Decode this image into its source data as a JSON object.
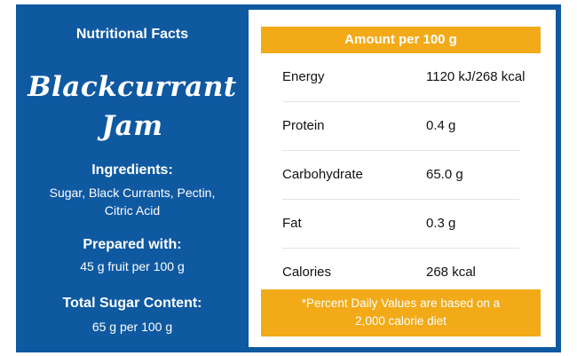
{
  "left": {
    "heading": "Nutritional Facts",
    "product_line1": "Blackcurrant",
    "product_line2": "Jam",
    "ingredients_heading": "Ingredients:",
    "ingredients_line1": "Sugar, Black Currants, Pectin,",
    "ingredients_line2": "Citric Acid",
    "prepared_heading": "Prepared with:",
    "prepared_value": "45 g fruit per 100 g",
    "sugar_heading": "Total Sugar Content:",
    "sugar_value": "65 g per 100 g"
  },
  "table": {
    "header": "Amount per 100 g",
    "rows": [
      {
        "name": "Energy",
        "value": "1120 kJ/268 kcal"
      },
      {
        "name": "Protein",
        "value": "0.4 g"
      },
      {
        "name": "Carbohydrate",
        "value": "65.0 g"
      },
      {
        "name": "Fat",
        "value": "0.3 g"
      },
      {
        "name": "Calories",
        "value": "268 kcal"
      }
    ],
    "footnote_line1": "*Percent Daily Values are based on a",
    "footnote_line2": "2,000 calorie diet"
  },
  "colors": {
    "background_blue": "#0f59a1",
    "accent_orange": "#f2aa18"
  }
}
